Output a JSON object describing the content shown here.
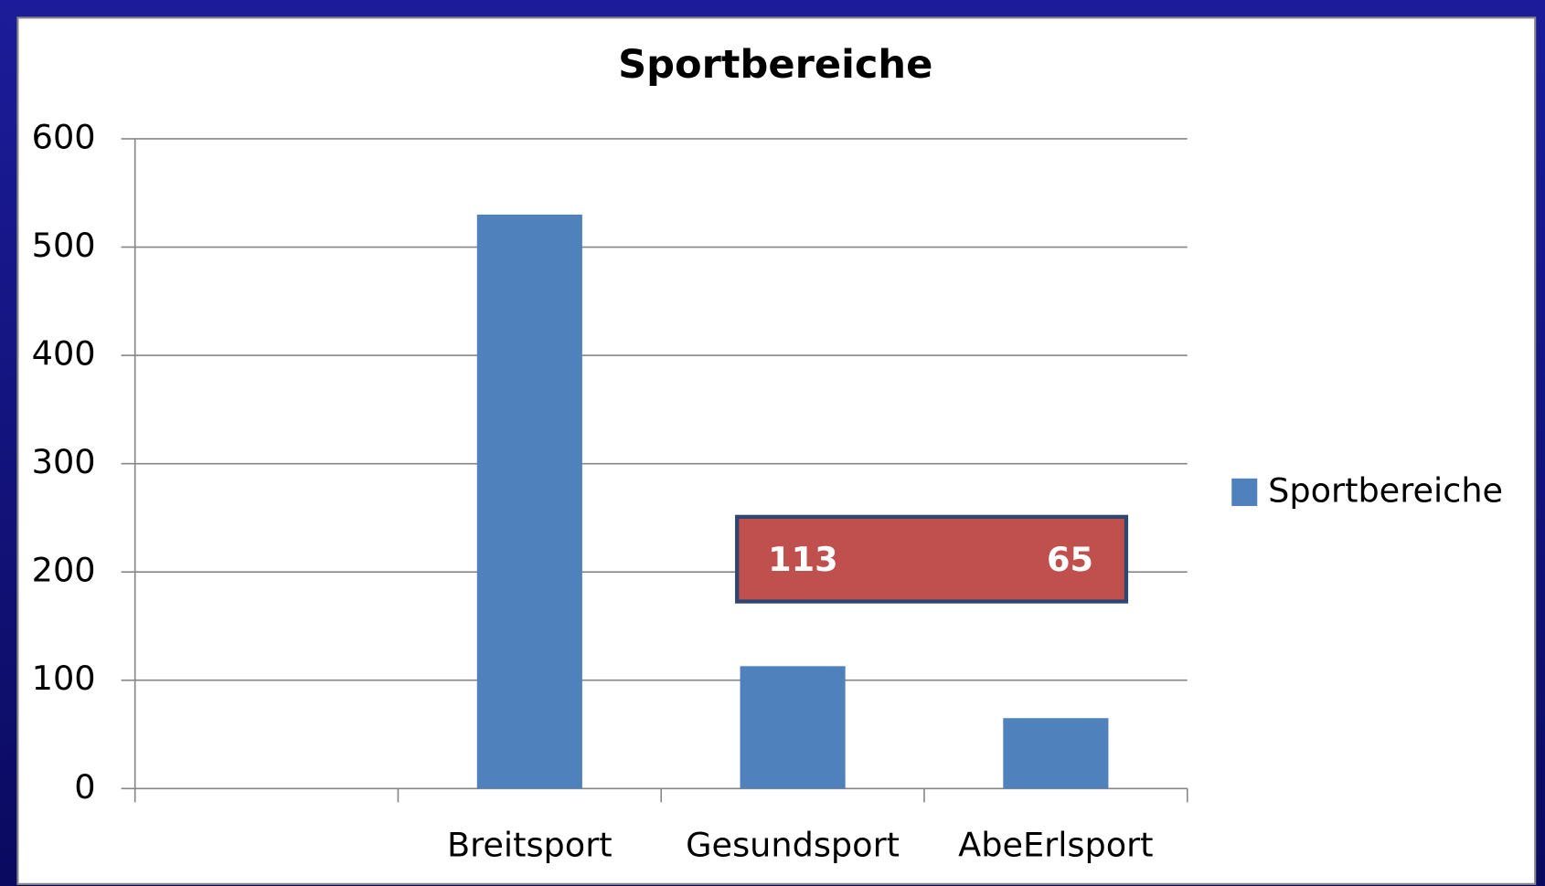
{
  "chart_data": {
    "type": "bar",
    "title": "Sportbereiche",
    "categories": [
      null,
      "Breitsport",
      "Gesundsport",
      "AbeErlsport"
    ],
    "series": [
      {
        "name": "Sportbereiche",
        "color": "#4f81bd",
        "values": [
          null,
          530,
          113,
          65
        ]
      }
    ],
    "ylim": [
      0,
      600
    ],
    "yticks": [
      0,
      100,
      200,
      300,
      400,
      500,
      600
    ],
    "grid": true,
    "legend": "right"
  }
}
